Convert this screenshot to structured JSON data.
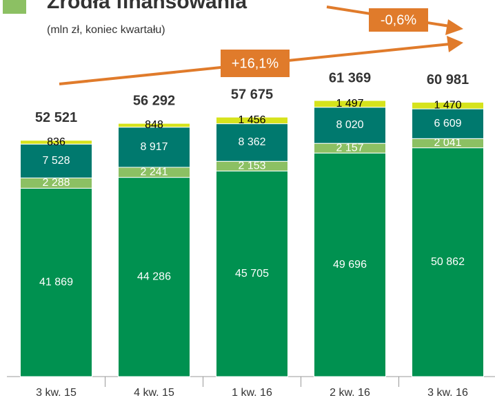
{
  "chart_data": {
    "type": "stacked_bar",
    "title": "Źródła finansowania",
    "subtitle": "(mln zł, koniec kwartału)",
    "categories": [
      "3 kw. 15",
      "4 kw. 15",
      "1 kw. 16",
      "2 kw. 16",
      "3 kw. 16"
    ],
    "series": [
      {
        "color": "#009150",
        "label_color": "#ffffff",
        "values": [
          41869,
          44286,
          45705,
          49696,
          50862
        ],
        "value_labels": [
          "41 869",
          "44 286",
          "45 705",
          "49 696",
          "50 862"
        ]
      },
      {
        "color": "#8cc063",
        "label_color": "#ffffff",
        "values": [
          2288,
          2241,
          2153,
          2157,
          2041
        ],
        "value_labels": [
          "2 288",
          "2 241",
          "2 153",
          "2 157",
          "2 041"
        ]
      },
      {
        "color": "#00796e",
        "label_color": "#ffffff",
        "values": [
          7528,
          8917,
          8362,
          8020,
          6609
        ],
        "value_labels": [
          "7 528",
          "8 917",
          "8 362",
          "8 020",
          "6 609"
        ]
      },
      {
        "color": "#d6e31c",
        "label_color": "#000000",
        "values": [
          836,
          848,
          1456,
          1497,
          1470
        ],
        "value_labels": [
          "836",
          "848",
          "1 456",
          "1 497",
          "1 470"
        ]
      }
    ],
    "totals": [
      52521,
      56292,
      57675,
      61369,
      60981
    ],
    "total_labels": [
      "52 521",
      "56 292",
      "57 675",
      "61 369",
      "60 981"
    ],
    "annotations": [
      "+16,1%",
      "-0,6%"
    ]
  }
}
